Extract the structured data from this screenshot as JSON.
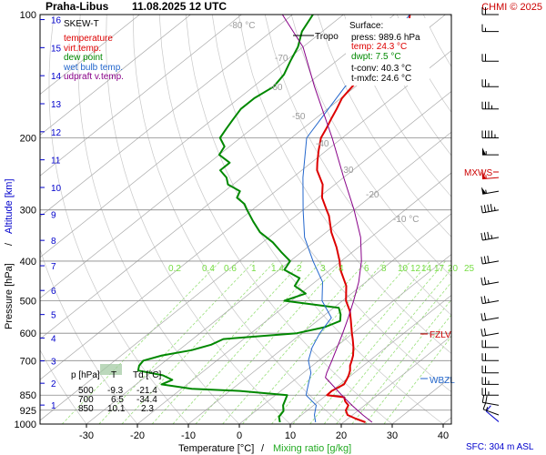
{
  "header": {
    "station": "Praha-Libus",
    "datetime": "11.08.2025 12 UTC",
    "credit": "CHMI © 2025"
  },
  "axes": {
    "xlabel_temp": "Temperature [°C]",
    "xlabel_sep": "/",
    "xlabel_mix": "Mixing ratio [g/kg]",
    "ylabel_pressure": "Pressure [hPa]",
    "ylabel_sep": "/",
    "ylabel_alt": "Altitude [km]",
    "sfc_note": "SFC: 304 m ASL"
  },
  "legend": {
    "title": "SKEW-T",
    "items": [
      {
        "label": "temperature",
        "color": "#dd0000"
      },
      {
        "label": "virt.temp.",
        "color": "#dd0000"
      },
      {
        "label": "dew point",
        "color": "#008800"
      },
      {
        "label": "wet bulb temp.",
        "color": "#2266cc"
      },
      {
        "label": "udpraft v.temp.",
        "color": "#880088"
      }
    ]
  },
  "surface_info": {
    "title": "Surface:",
    "press": "press: 989.6 hPa",
    "temp": "temp: 24.3 °C",
    "dwpt": "dwpt: 7.5 °C",
    "tconv": "t-conv: 40.3 °C",
    "tmxfc": "t-mxfc: 24.6 °C"
  },
  "markers": {
    "tropo": "Tropo",
    "mxws": "MXWS",
    "fzlv": "FZLV",
    "wbzl": "WBZL"
  },
  "level_table": {
    "headers": [
      "p [hPa]",
      "T",
      "Td [°C]"
    ],
    "rows": [
      [
        "500",
        "-9.3",
        "-21.4"
      ],
      [
        "700",
        "6.5",
        "-34.4"
      ],
      [
        "850",
        "10.1",
        "2.3"
      ]
    ]
  },
  "chart_data": {
    "type": "line",
    "title": "Praha-Libus 11.08.2025 12 UTC",
    "xlabel": "Temperature [°C] / Mixing ratio [g/kg]",
    "ylabel": "Pressure [hPa] / Altitude [km]",
    "xlim": [
      -35,
      45
    ],
    "ylim": [
      1000,
      100
    ],
    "y_scale": "log",
    "skew": "skew-T",
    "x_ticks": [
      -30,
      -20,
      -10,
      0,
      10,
      20,
      30,
      40
    ],
    "y_ticks": [
      100,
      200,
      300,
      400,
      500,
      600,
      700,
      850,
      925,
      1000
    ],
    "altitude_ticks_km": [
      1,
      2,
      3,
      4,
      5,
      6,
      7,
      8,
      9,
      10,
      11,
      12,
      13,
      14,
      15,
      16
    ],
    "isotherm_labels": [
      "-80 °C",
      "-70",
      "-60",
      "-50",
      "-40",
      "-30",
      "-20",
      "-10 °C"
    ],
    "mixing_ratio_labels": [
      "0.2",
      "0.4",
      "0.6",
      "1",
      "1.4",
      "2",
      "3",
      "4",
      "6",
      "8",
      "10",
      "12",
      "14",
      "17",
      "20",
      "25"
    ],
    "series": [
      {
        "name": "temperature",
        "color": "#dd0000",
        "points": [
          [
            989.6,
            24.3
          ],
          [
            970,
            21.5
          ],
          [
            950,
            19.0
          ],
          [
            925,
            17.5
          ],
          [
            900,
            16.8
          ],
          [
            880,
            15.2
          ],
          [
            860,
            14.0
          ],
          [
            850,
            10.1
          ],
          [
            830,
            10.0
          ],
          [
            800,
            10.8
          ],
          [
            780,
            10.2
          ],
          [
            760,
            9.5
          ],
          [
            740,
            8.6
          ],
          [
            720,
            7.4
          ],
          [
            700,
            6.5
          ],
          [
            680,
            5.5
          ],
          [
            650,
            3.6
          ],
          [
            620,
            1.4
          ],
          [
            600,
            -0.2
          ],
          [
            560,
            -3.4
          ],
          [
            530,
            -6.0
          ],
          [
            500,
            -9.3
          ],
          [
            460,
            -12.9
          ],
          [
            420,
            -18.0
          ],
          [
            400,
            -20.3
          ],
          [
            370,
            -24.3
          ],
          [
            340,
            -29.0
          ],
          [
            310,
            -33.5
          ],
          [
            300,
            -35.4
          ],
          [
            280,
            -39.3
          ],
          [
            260,
            -42.4
          ],
          [
            240,
            -47.0
          ],
          [
            230,
            -48.8
          ],
          [
            215,
            -51.5
          ],
          [
            200,
            -54.2
          ],
          [
            190,
            -55.4
          ],
          [
            180,
            -56.8
          ],
          [
            170,
            -58.2
          ],
          [
            160,
            -59.8
          ],
          [
            150,
            -60.6
          ],
          [
            140,
            -61.6
          ],
          [
            130,
            -62.4
          ],
          [
            125,
            -63.8
          ],
          [
            120,
            -63.2
          ],
          [
            115,
            -63.6
          ],
          [
            110,
            -63.4
          ],
          [
            105,
            -65.0
          ],
          [
            100,
            -67.0
          ]
        ]
      },
      {
        "name": "dew point",
        "color": "#008800",
        "points": [
          [
            989.6,
            7.5
          ],
          [
            960,
            6.0
          ],
          [
            930,
            5.5
          ],
          [
            900,
            4.0
          ],
          [
            870,
            3.0
          ],
          [
            850,
            2.3
          ],
          [
            830,
            -8.0
          ],
          [
            820,
            -18.0
          ],
          [
            800,
            -25.0
          ],
          [
            780,
            -24.0
          ],
          [
            760,
            -27.0
          ],
          [
            740,
            -33.0
          ],
          [
            720,
            -34.0
          ],
          [
            700,
            -34.4
          ],
          [
            680,
            -32.0
          ],
          [
            660,
            -27.5
          ],
          [
            640,
            -25.0
          ],
          [
            620,
            -24.0
          ],
          [
            600,
            -11.0
          ],
          [
            580,
            -7.0
          ],
          [
            560,
            -5.5
          ],
          [
            540,
            -7.0
          ],
          [
            520,
            -9.0
          ],
          [
            500,
            -21.4
          ],
          [
            480,
            -19.0
          ],
          [
            460,
            -23.0
          ],
          [
            440,
            -24.0
          ],
          [
            420,
            -29.0
          ],
          [
            400,
            -30.0
          ],
          [
            380,
            -34.0
          ],
          [
            360,
            -38.0
          ],
          [
            340,
            -43.0
          ],
          [
            320,
            -47.0
          ],
          [
            300,
            -51.0
          ],
          [
            290,
            -53.0
          ],
          [
            280,
            -56.0
          ],
          [
            270,
            -57.0
          ],
          [
            260,
            -61.0
          ],
          [
            250,
            -63.0
          ],
          [
            240,
            -66.0
          ],
          [
            230,
            -66.0
          ],
          [
            220,
            -70.0
          ],
          [
            210,
            -71.0
          ],
          [
            200,
            -74.0
          ],
          [
            190,
            -75.0
          ],
          [
            180,
            -76.0
          ],
          [
            170,
            -77.0
          ],
          [
            160,
            -77.0
          ],
          [
            150,
            -76.0
          ],
          [
            140,
            -77.0
          ],
          [
            130,
            -79.0
          ],
          [
            120,
            -81.0
          ],
          [
            110,
            -84.0
          ],
          [
            100,
            -86.0
          ]
        ]
      },
      {
        "name": "wet bulb temp.",
        "color": "#2266cc",
        "points": [
          [
            989.6,
            14.5
          ],
          [
            950,
            12.5
          ],
          [
            900,
            10.5
          ],
          [
            850,
            6.0
          ],
          [
            800,
            3.8
          ],
          [
            750,
            1.5
          ],
          [
            700,
            -2.0
          ],
          [
            650,
            -4.5
          ],
          [
            600,
            -6.5
          ],
          [
            550,
            -8.0
          ],
          [
            500,
            -14.0
          ],
          [
            450,
            -18.5
          ],
          [
            400,
            -25.5
          ],
          [
            350,
            -33.0
          ],
          [
            300,
            -40.0
          ],
          [
            250,
            -48.0
          ],
          [
            200,
            -57.0
          ],
          [
            150,
            -62.0
          ],
          [
            120,
            -64.0
          ],
          [
            100,
            -67.0
          ]
        ]
      },
      {
        "name": "udpraft v.temp.",
        "color": "#880088",
        "points": [
          [
            989.6,
            25.6
          ],
          [
            950,
            22.0
          ],
          [
            900,
            17.5
          ],
          [
            850,
            13.0
          ],
          [
            800,
            8.4
          ],
          [
            770,
            5.5
          ],
          [
            750,
            4.6
          ],
          [
            700,
            2.6
          ],
          [
            650,
            0.4
          ],
          [
            600,
            -2.0
          ],
          [
            550,
            -4.7
          ],
          [
            500,
            -7.8
          ],
          [
            450,
            -11.4
          ],
          [
            400,
            -16.0
          ],
          [
            350,
            -22.0
          ],
          [
            300,
            -30.0
          ],
          [
            250,
            -40.0
          ],
          [
            200,
            -52.0
          ],
          [
            150,
            -68.0
          ],
          [
            120,
            -80.0
          ],
          [
            100,
            -92.0
          ]
        ]
      }
    ],
    "wind_barbs": [
      {
        "p": 987,
        "dir": 310,
        "speed": 10
      },
      {
        "p": 950,
        "dir": 290,
        "speed": 15
      },
      {
        "p": 900,
        "dir": 280,
        "speed": 20
      },
      {
        "p": 850,
        "dir": 270,
        "speed": 25
      },
      {
        "p": 800,
        "dir": 270,
        "speed": 25
      },
      {
        "p": 750,
        "dir": 270,
        "speed": 20
      },
      {
        "p": 700,
        "dir": 270,
        "speed": 20
      },
      {
        "p": 650,
        "dir": 270,
        "speed": 20
      },
      {
        "p": 600,
        "dir": 260,
        "speed": 20
      },
      {
        "p": 550,
        "dir": 260,
        "speed": 20
      },
      {
        "p": 500,
        "dir": 260,
        "speed": 25
      },
      {
        "p": 450,
        "dir": 260,
        "speed": 25
      },
      {
        "p": 400,
        "dir": 260,
        "speed": 30
      },
      {
        "p": 350,
        "dir": 260,
        "speed": 35
      },
      {
        "p": 300,
        "dir": 260,
        "speed": 45
      },
      {
        "p": 270,
        "dir": 260,
        "speed": 55
      },
      {
        "p": 250,
        "dir": 265,
        "speed": 55
      },
      {
        "p": 220,
        "dir": 270,
        "speed": 55
      },
      {
        "p": 200,
        "dir": 270,
        "speed": 45
      },
      {
        "p": 170,
        "dir": 270,
        "speed": 35
      },
      {
        "p": 150,
        "dir": 270,
        "speed": 25
      },
      {
        "p": 130,
        "dir": 270,
        "speed": 20
      },
      {
        "p": 110,
        "dir": 270,
        "speed": 15
      },
      {
        "p": 100,
        "dir": 270,
        "speed": 20
      }
    ]
  }
}
